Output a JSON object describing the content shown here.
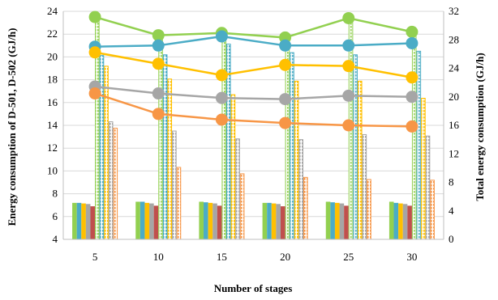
{
  "chart_data": {
    "type": "bar",
    "categories": [
      "5",
      "10",
      "15",
      "20",
      "25",
      "30"
    ],
    "xlabel": "Number of stages",
    "ylabel": "Energy consumption of D-501, D-502 (GJ/h)",
    "y2label": "Total energy consumption (GJ/h)",
    "ylim": [
      4,
      24
    ],
    "y2lim": [
      0,
      32
    ],
    "yticks": [
      "4",
      "6",
      "8",
      "10",
      "12",
      "14",
      "16",
      "18",
      "20",
      "22",
      "24"
    ],
    "y2ticks": [
      "0",
      "4",
      "8",
      "12",
      "16",
      "20",
      "24",
      "28",
      "32"
    ],
    "grid": true,
    "legend": "none",
    "bar_series": [
      {
        "axis": "left",
        "style": "solid",
        "color": "#92d050",
        "values": [
          7.2,
          7.3,
          7.3,
          7.2,
          7.3,
          7.3
        ]
      },
      {
        "axis": "left",
        "style": "solid",
        "color": "#4bacc6",
        "values": [
          7.2,
          7.3,
          7.25,
          7.2,
          7.25,
          7.2
        ]
      },
      {
        "axis": "left",
        "style": "solid",
        "color": "#ffc000",
        "values": [
          7.15,
          7.2,
          7.2,
          7.15,
          7.2,
          7.15
        ]
      },
      {
        "axis": "left",
        "style": "solid",
        "color": "#a6a6a6",
        "values": [
          7.1,
          7.15,
          7.15,
          7.1,
          7.15,
          7.1
        ]
      },
      {
        "axis": "left",
        "style": "solid",
        "color": "#c0504d",
        "values": [
          6.9,
          6.95,
          6.95,
          6.9,
          6.95,
          6.95
        ]
      },
      {
        "axis": "right",
        "style": "hatched",
        "color": "#92d050",
        "values": [
          31.2,
          28.6,
          28.6,
          28.4,
          31.2,
          29.4
        ]
      },
      {
        "axis": "right",
        "style": "hatched",
        "color": "#4bacc6",
        "values": [
          25.8,
          25.9,
          27.4,
          26.2,
          25.9,
          26.4
        ]
      },
      {
        "axis": "right",
        "style": "hatched",
        "color": "#ffc000",
        "values": [
          24.3,
          22.5,
          20.3,
          22.2,
          22.2,
          19.8
        ]
      },
      {
        "axis": "right",
        "style": "hatched",
        "color": "#a6a6a6",
        "values": [
          16.5,
          15.2,
          14.1,
          14.0,
          14.7,
          14.5
        ]
      },
      {
        "axis": "right",
        "style": "hatched",
        "color": "#f79646",
        "values": [
          15.6,
          10.1,
          9.2,
          8.7,
          8.4,
          8.3
        ]
      }
    ],
    "line_series": [
      {
        "axis": "left",
        "color": "#92d050",
        "values": [
          23.5,
          21.9,
          22.1,
          21.7,
          23.4,
          22.2
        ]
      },
      {
        "axis": "left",
        "color": "#4bacc6",
        "values": [
          20.9,
          21.0,
          21.8,
          21.0,
          21.0,
          21.2
        ]
      },
      {
        "axis": "left",
        "color": "#ffc000",
        "values": [
          20.4,
          19.4,
          18.4,
          19.3,
          19.2,
          18.2
        ]
      },
      {
        "axis": "left",
        "color": "#a6a6a6",
        "values": [
          17.4,
          16.8,
          16.4,
          16.3,
          16.6,
          16.5
        ]
      },
      {
        "axis": "left",
        "color": "#f79646",
        "values": [
          16.8,
          15.0,
          14.5,
          14.2,
          14.0,
          13.9
        ]
      }
    ]
  }
}
